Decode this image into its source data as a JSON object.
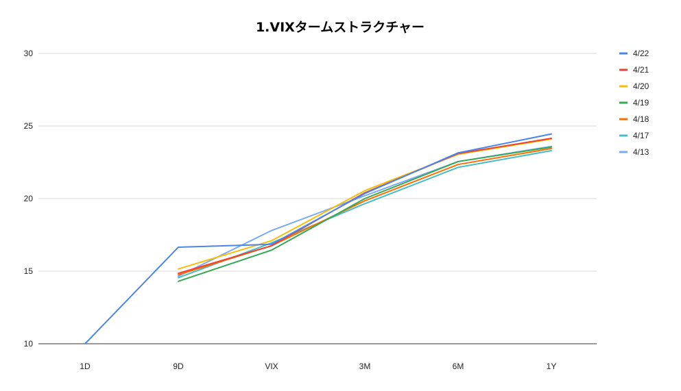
{
  "chart_data": {
    "type": "line",
    "title": "1.VIXタームストラクチャー",
    "xlabel": "",
    "ylabel": "",
    "categories": [
      "1D",
      "9D",
      "VIX",
      "3M",
      "6M",
      "1Y"
    ],
    "ylim": [
      10,
      30
    ],
    "yticks": [
      "10",
      "15",
      "20",
      "25",
      "30"
    ],
    "grid": true,
    "legend_position": "right",
    "series": [
      {
        "name": "4/22",
        "color": "#4a86e8",
        "values": [
          10.0,
          16.65,
          16.85,
          20.35,
          23.15,
          24.45
        ]
      },
      {
        "name": "4/21",
        "color": "#ea4335",
        "values": [
          null,
          14.85,
          16.75,
          20.4,
          23.1,
          24.15
        ]
      },
      {
        "name": "4/20",
        "color": "#fbbc04",
        "values": [
          null,
          15.15,
          17.1,
          20.55,
          23.05,
          24.1
        ]
      },
      {
        "name": "4/19",
        "color": "#34a853",
        "values": [
          null,
          14.3,
          16.45,
          20.0,
          22.55,
          23.55
        ]
      },
      {
        "name": "4/18",
        "color": "#ff6d01",
        "values": [
          null,
          14.75,
          16.75,
          19.85,
          22.35,
          23.45
        ]
      },
      {
        "name": "4/17",
        "color": "#46bdc6",
        "values": [
          null,
          14.55,
          16.95,
          19.65,
          22.15,
          23.3
        ]
      },
      {
        "name": "4/13",
        "color": "#7baaf7",
        "values": [
          null,
          14.65,
          17.8,
          20.2,
          22.55,
          23.6
        ]
      }
    ]
  }
}
